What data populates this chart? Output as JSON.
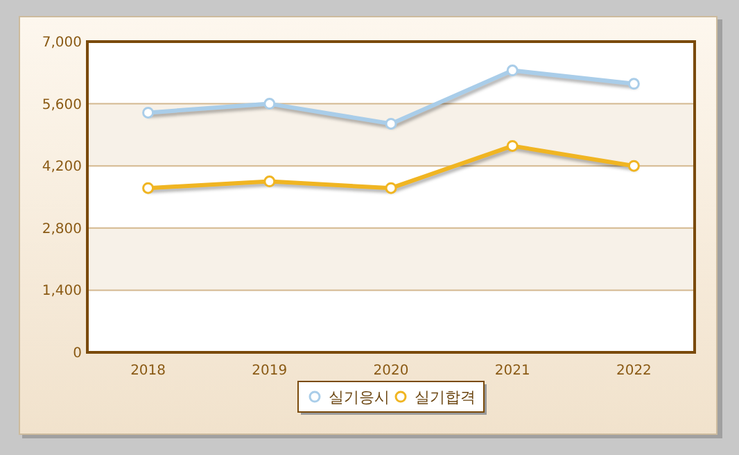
{
  "chart_data": {
    "type": "line",
    "categories": [
      "2018",
      "2019",
      "2020",
      "2021",
      "2022"
    ],
    "series": [
      {
        "name": "실기응시",
        "color": "#a9cde9",
        "values": [
          5400,
          5600,
          5150,
          6350,
          6050
        ]
      },
      {
        "name": "실기합격",
        "color": "#f0b522",
        "values": [
          3700,
          3850,
          3700,
          4650,
          4200
        ]
      }
    ],
    "ylim": [
      0,
      7000
    ],
    "yticks": [
      {
        "value": 0,
        "label": "0"
      },
      {
        "value": 1400,
        "label": "1,400"
      },
      {
        "value": 2800,
        "label": "2,800"
      },
      {
        "value": 4200,
        "label": "4,200"
      },
      {
        "value": 5600,
        "label": "5,600"
      },
      {
        "value": 7000,
        "label": "7,000"
      }
    ],
    "grid": "y",
    "legend": "bottom",
    "marker": "circle",
    "line_style": "solid"
  }
}
